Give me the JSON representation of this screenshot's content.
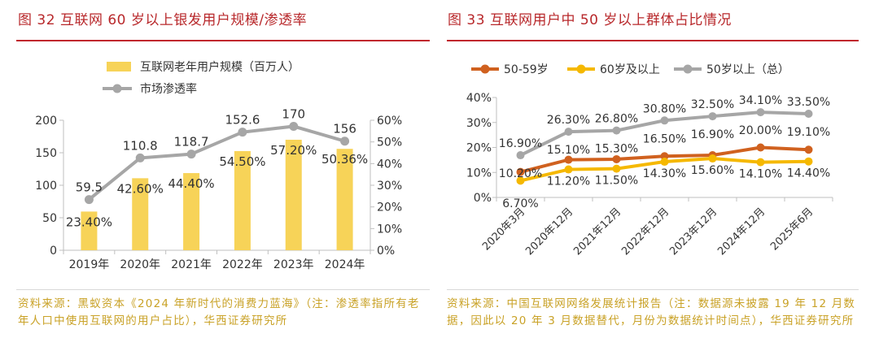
{
  "left": {
    "figure_title": "图 32 互联网 60 岁以上银发用户规模/渗透率",
    "source": "资料来源：黑蚁资本《2024 年新时代的消费力蓝海》（注：渗透率指所有老年人口中使用互联网的用户占比），华西证券研究所"
  },
  "right": {
    "figure_title": "图 33 互联网用户中 50 岁以上群体占比情况",
    "source": "资料来源：中国互联网网络发展统计报告（注：数据源未披露 19 年 12 月数据，因此以 20 年 3 月数据替代，月份为数据统计时间点），华西证券研究所"
  },
  "colors": {
    "bar": "#f7d358",
    "gray_line": "#a6a6a6",
    "orange_line": "#d0611f",
    "yellow_line": "#f5b800",
    "title_red": "#b8282b",
    "source_gold": "#c9a227"
  },
  "chart_data": [
    {
      "type": "bar+line",
      "categories": [
        "2019年",
        "2020年",
        "2021年",
        "2022年",
        "2023年",
        "2024年"
      ],
      "series": [
        {
          "name": "互联网老年用户规模（百万人）",
          "kind": "bar",
          "axis": "left",
          "values": [
            59.5,
            110.8,
            118.7,
            152.6,
            170,
            156
          ],
          "labels": [
            "59.5",
            "110.8",
            "118.7",
            "152.6",
            "170",
            "156"
          ]
        },
        {
          "name": "市场渗透率",
          "kind": "line",
          "axis": "right",
          "values": [
            23.4,
            42.6,
            44.4,
            54.5,
            57.2,
            50.36
          ],
          "labels": [
            "23.40%",
            "42.60%",
            "44.40%",
            "54.50%",
            "57.20%",
            "50.36%"
          ]
        }
      ],
      "y_left": {
        "min": 0,
        "max": 200,
        "ticks": [
          "0",
          "50",
          "100",
          "150",
          "200"
        ]
      },
      "y_right": {
        "min": 0,
        "max": 60,
        "ticks": [
          "0%",
          "10%",
          "20%",
          "30%",
          "40%",
          "50%",
          "60%"
        ]
      },
      "legend_position": "top-left"
    },
    {
      "type": "line",
      "categories": [
        "2020年3月",
        "2020年12月",
        "2021年12月",
        "2022年12月",
        "2023年12月",
        "2024年12月",
        "2025年6月"
      ],
      "series": [
        {
          "name": "50-59岁",
          "values": [
            10.2,
            15.1,
            15.3,
            16.5,
            16.9,
            20.0,
            19.1
          ],
          "labels": [
            "10.20%",
            "15.10%",
            "15.30%",
            "16.50%",
            "16.90%",
            "20.00%",
            "19.10%"
          ]
        },
        {
          "name": "60岁及以上",
          "values": [
            6.7,
            11.2,
            11.5,
            14.3,
            15.6,
            14.1,
            14.4
          ],
          "labels": [
            "6.70%",
            "11.20%",
            "11.50%",
            "14.30%",
            "15.60%",
            "14.10%",
            "14.40%"
          ]
        },
        {
          "name": "50岁以上（总）",
          "values": [
            16.9,
            26.3,
            26.8,
            30.8,
            32.5,
            34.1,
            33.5
          ],
          "labels": [
            "16.90%",
            "26.30%",
            "26.80%",
            "30.80%",
            "32.50%",
            "34.10%",
            "33.50%"
          ]
        }
      ],
      "y": {
        "min": 0,
        "max": 40,
        "ticks": [
          "0%",
          "10%",
          "20%",
          "30%",
          "40%"
        ]
      },
      "legend_position": "top"
    }
  ]
}
